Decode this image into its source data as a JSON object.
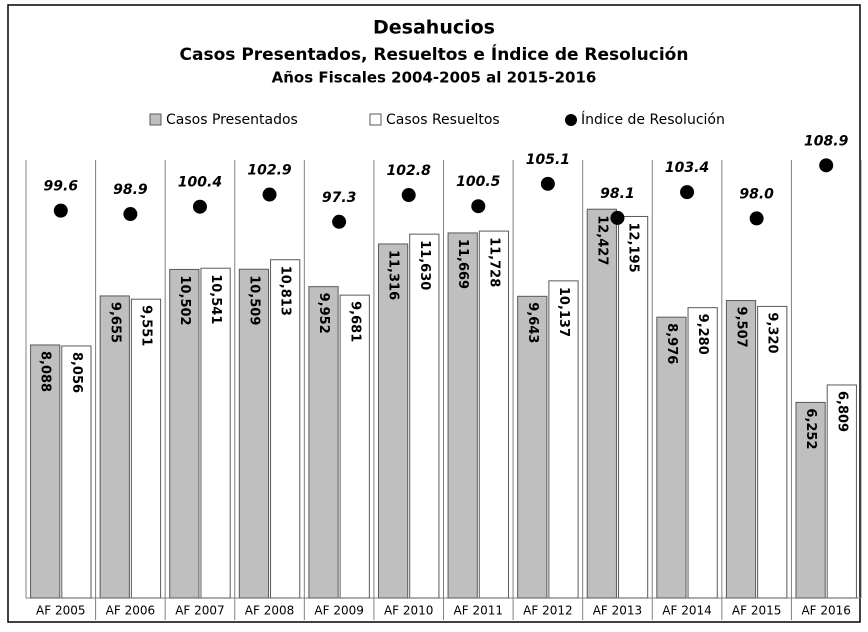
{
  "chart_data": {
    "type": "bar",
    "title": "Desahucios",
    "subtitle": "Casos Presentados, Resueltos e Índice de Resolución",
    "subtitle2": "Años Fiscales 2004-2005 al 2015-2016",
    "categories": [
      "AF 2005",
      "AF 2006",
      "AF 2007",
      "AF 2008",
      "AF 2009",
      "AF 2010",
      "AF 2011",
      "AF 2012",
      "AF 2013",
      "AF 2014",
      "AF 2015",
      "AF 2016"
    ],
    "series": [
      {
        "name": "Casos Presentados",
        "color": "#bfbfbf",
        "values": [
          8088,
          9655,
          10502,
          10509,
          9952,
          11316,
          11669,
          9643,
          12427,
          8976,
          9507,
          6252
        ],
        "value_labels": [
          "8,088",
          "9,655",
          "10,502",
          "10,509",
          "9,952",
          "11,316",
          "11,669",
          "9,643",
          "12,427",
          "8,976",
          "9,507",
          "6,252"
        ]
      },
      {
        "name": "Casos Resueltos",
        "color": "#ffffff",
        "values": [
          8056,
          9551,
          10541,
          10813,
          9681,
          11630,
          11728,
          10137,
          12195,
          9280,
          9320,
          6809
        ],
        "value_labels": [
          "8,056",
          "9,551",
          "10,541",
          "10,813",
          "9,681",
          "11,630",
          "11,728",
          "10,137",
          "12,195",
          "9,280",
          "9,320",
          "6,809"
        ]
      },
      {
        "name": "Índice de Resolución",
        "color": "#000000",
        "axis": "y2",
        "values": [
          99.6,
          98.9,
          100.4,
          102.9,
          97.3,
          102.8,
          100.5,
          105.1,
          98.1,
          103.4,
          98.0,
          108.9
        ],
        "value_labels": [
          "99.6",
          "98.9",
          "100.4",
          "102.9",
          "97.3",
          "102.8",
          "100.5",
          "105.1",
          "98.1",
          "103.4",
          "98.0",
          "108.9"
        ]
      }
    ],
    "ylim": [
      0,
      14000
    ],
    "y2lim": [
      20,
      110
    ]
  }
}
